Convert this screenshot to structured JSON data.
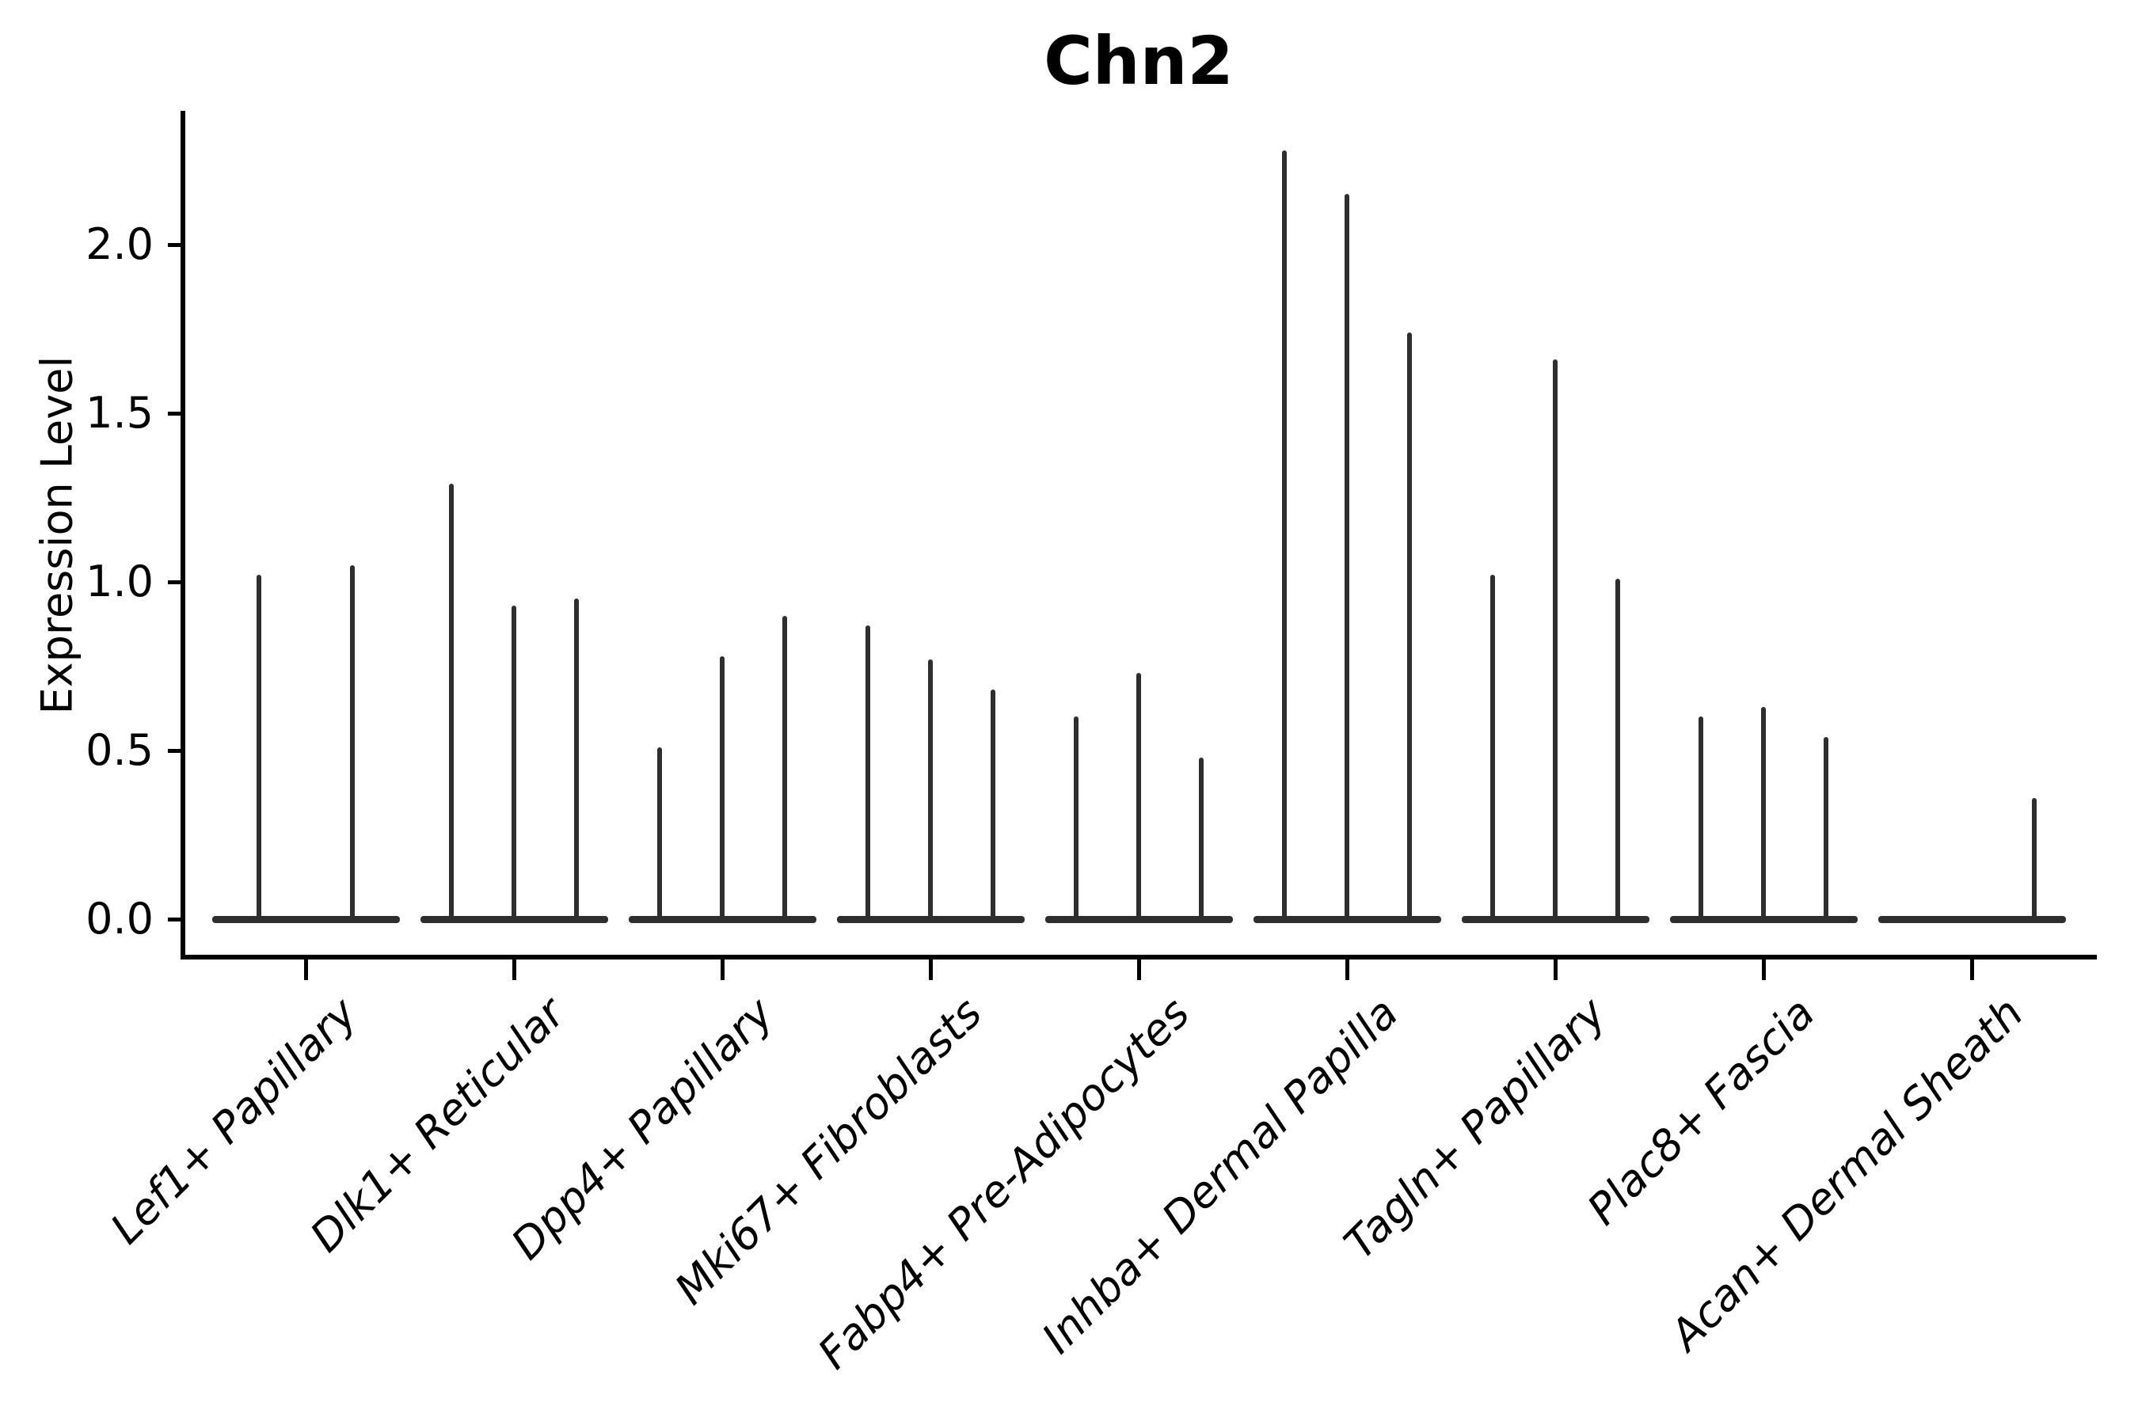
{
  "chart_data": {
    "type": "violin",
    "title": "Chn2",
    "xlabel": "",
    "ylabel": "Expression Level",
    "categories": [
      "Lef1+ Papillary",
      "Dlk1+ Reticular",
      "Dpp4+ Papillary",
      "Mki67+ Fibroblasts",
      "Fabp4+ Pre-Adipocytes",
      "Inhba+ Dermal Papilla",
      "Tagln+ Papillary",
      "Plac8+ Fascia",
      "Acan+ Dermal Sheath"
    ],
    "groups": [
      {
        "label": "Lef1+ Papillary",
        "violin_maxima": [
          1.02,
          1.05
        ]
      },
      {
        "label": "Dlk1+ Reticular",
        "violin_maxima": [
          1.29,
          0.93,
          0.95
        ]
      },
      {
        "label": "Dpp4+ Papillary",
        "violin_maxima": [
          0.51,
          0.78,
          0.9
        ]
      },
      {
        "label": "Mki67+ Fibroblasts",
        "violin_maxima": [
          0.87,
          0.77,
          0.68
        ]
      },
      {
        "label": "Fabp4+ Pre-Adipocytes",
        "violin_maxima": [
          0.6,
          0.73,
          0.48
        ]
      },
      {
        "label": "Inhba+ Dermal Papilla",
        "violin_maxima": [
          2.28,
          2.15,
          1.74
        ]
      },
      {
        "label": "Tagln+ Papillary",
        "violin_maxima": [
          1.02,
          1.66,
          1.01
        ]
      },
      {
        "label": "Plac8+ Fascia",
        "violin_maxima": [
          0.6,
          0.63,
          0.54
        ]
      },
      {
        "label": "Acan+ Dermal Sheath",
        "violin_maxima": [
          0.0,
          0.0,
          0.36
        ]
      }
    ],
    "ytick_labels": [
      "0.0",
      "0.5",
      "1.0",
      "1.5",
      "2.0"
    ],
    "ytick_values": [
      0.0,
      0.5,
      1.0,
      1.5,
      2.0
    ],
    "ylim": [
      -0.11,
      2.39
    ],
    "grid": false,
    "legend": "none",
    "violin_color": "#2e2e2e",
    "axis_color": "#000000"
  }
}
